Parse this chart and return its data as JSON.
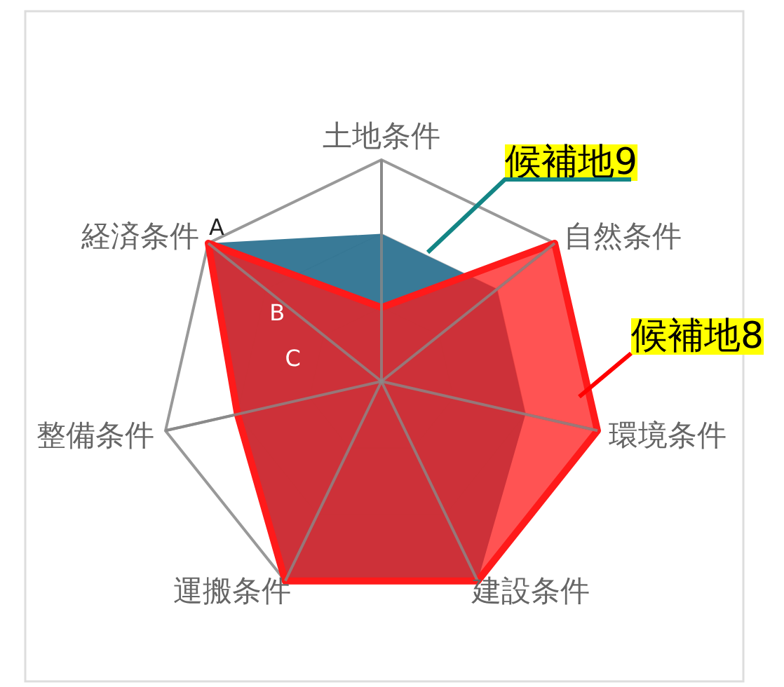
{
  "chart_data": {
    "type": "radar",
    "categories": [
      "土地条件",
      "自然条件",
      "環境条件",
      "建設条件",
      "運搬条件",
      "整備条件",
      "経済条件"
    ],
    "series": [
      {
        "name": "候補地9",
        "color": "#2e7391",
        "values": [
          2,
          2,
          2,
          3,
          3,
          2,
          3
        ]
      },
      {
        "name": "候補地8",
        "color": "#ff1a1a",
        "values": [
          1,
          3,
          3,
          3,
          3,
          2,
          3
        ]
      }
    ],
    "ylim": [
      0,
      3
    ],
    "yticks": [
      {
        "value": 1,
        "label": "C"
      },
      {
        "value": 2,
        "label": "B"
      },
      {
        "value": 3,
        "label": "A"
      }
    ]
  }
}
